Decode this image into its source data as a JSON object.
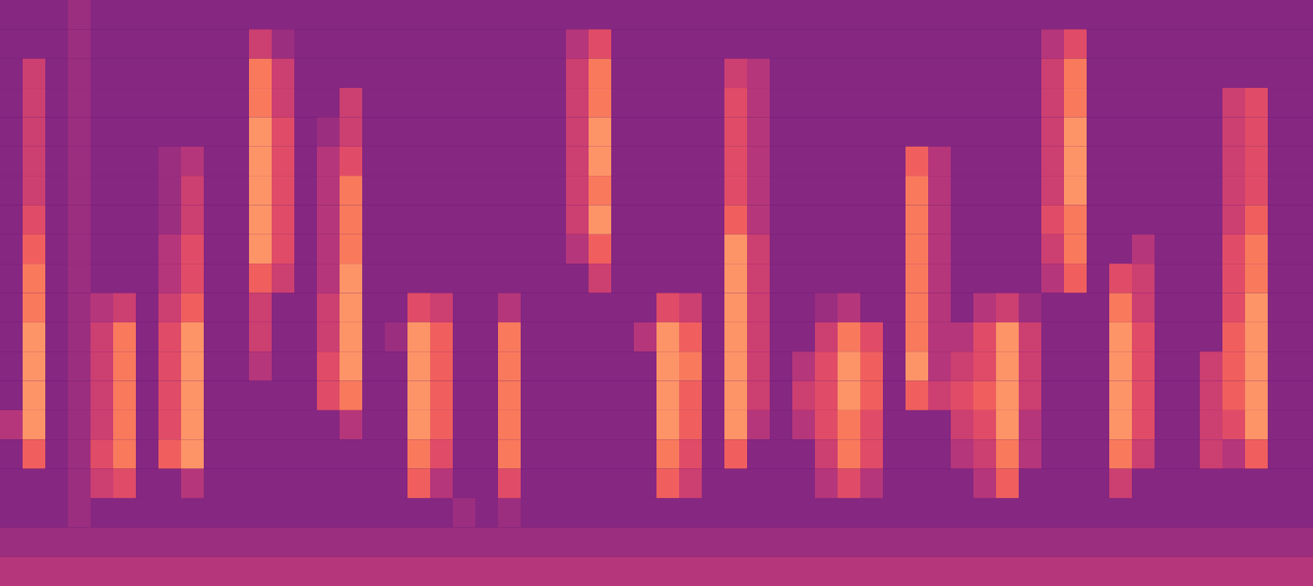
{
  "chart_data": {
    "type": "heatmap",
    "tick_labels": false,
    "xlim": [
      0,
      58
    ],
    "ylim": [
      0,
      20
    ],
    "color_range": [
      0,
      9
    ],
    "cells": [
      [
        1,
        1,
        1,
        2,
        1,
        1,
        1,
        1,
        1,
        1,
        1,
        1,
        1,
        1,
        1,
        1,
        1,
        1,
        1,
        1,
        1,
        1,
        1,
        1,
        1,
        1,
        1,
        1,
        1,
        1,
        1,
        1,
        1,
        1,
        1,
        1,
        1,
        1,
        1,
        1,
        1,
        1,
        1,
        1,
        1,
        1,
        1,
        1,
        1,
        1,
        1,
        1,
        1,
        1,
        1,
        1,
        1,
        1
      ],
      [
        1,
        1,
        1,
        2,
        1,
        1,
        1,
        1,
        1,
        1,
        1,
        4,
        2,
        1,
        1,
        1,
        1,
        1,
        1,
        1,
        1,
        1,
        1,
        1,
        1,
        3,
        5,
        1,
        1,
        1,
        1,
        1,
        1,
        1,
        1,
        1,
        1,
        1,
        1,
        1,
        1,
        1,
        1,
        1,
        1,
        1,
        3,
        5,
        1,
        1,
        1,
        1,
        1,
        1,
        1,
        1,
        1,
        1
      ],
      [
        1,
        4,
        1,
        2,
        1,
        1,
        1,
        1,
        1,
        1,
        1,
        7,
        4,
        1,
        1,
        1,
        1,
        1,
        1,
        1,
        1,
        1,
        1,
        1,
        1,
        4,
        7,
        1,
        1,
        1,
        1,
        1,
        4,
        3,
        1,
        1,
        1,
        1,
        1,
        1,
        1,
        1,
        1,
        1,
        1,
        1,
        4,
        7,
        1,
        1,
        1,
        1,
        1,
        1,
        1,
        1,
        1,
        1
      ],
      [
        1,
        4,
        1,
        2,
        1,
        1,
        1,
        1,
        1,
        1,
        1,
        7,
        4,
        1,
        1,
        4,
        1,
        1,
        1,
        1,
        1,
        1,
        1,
        1,
        1,
        4,
        7,
        1,
        1,
        1,
        1,
        1,
        5,
        3,
        1,
        1,
        1,
        1,
        1,
        1,
        1,
        1,
        1,
        1,
        1,
        1,
        4,
        7,
        1,
        1,
        1,
        1,
        1,
        1,
        4,
        5,
        1,
        1
      ],
      [
        1,
        4,
        1,
        2,
        1,
        1,
        1,
        1,
        1,
        1,
        1,
        8,
        5,
        1,
        2,
        4,
        1,
        1,
        1,
        1,
        1,
        1,
        1,
        1,
        1,
        4,
        8,
        1,
        1,
        1,
        1,
        1,
        5,
        3,
        1,
        1,
        1,
        1,
        1,
        1,
        1,
        1,
        1,
        1,
        1,
        1,
        4,
        8,
        1,
        1,
        1,
        1,
        1,
        1,
        4,
        5,
        1,
        1
      ],
      [
        1,
        4,
        1,
        2,
        1,
        1,
        1,
        2,
        3,
        1,
        1,
        8,
        5,
        1,
        3,
        5,
        1,
        1,
        1,
        1,
        1,
        1,
        1,
        1,
        1,
        4,
        8,
        1,
        1,
        1,
        1,
        1,
        5,
        3,
        1,
        1,
        1,
        1,
        1,
        1,
        6,
        3,
        1,
        1,
        1,
        1,
        4,
        8,
        1,
        1,
        1,
        1,
        1,
        1,
        4,
        5,
        1,
        1
      ],
      [
        1,
        4,
        1,
        2,
        1,
        1,
        1,
        2,
        4,
        1,
        1,
        8,
        5,
        1,
        3,
        7,
        1,
        1,
        1,
        1,
        1,
        1,
        1,
        1,
        1,
        4,
        7,
        1,
        1,
        1,
        1,
        1,
        5,
        3,
        1,
        1,
        1,
        1,
        1,
        1,
        7,
        3,
        1,
        1,
        1,
        1,
        4,
        8,
        1,
        1,
        1,
        1,
        1,
        1,
        4,
        5,
        1,
        1
      ],
      [
        1,
        5,
        1,
        2,
        1,
        1,
        1,
        2,
        4,
        1,
        1,
        8,
        5,
        1,
        3,
        7,
        1,
        1,
        1,
        1,
        1,
        1,
        1,
        1,
        1,
        4,
        8,
        1,
        1,
        1,
        1,
        1,
        6,
        3,
        1,
        1,
        1,
        1,
        1,
        1,
        7,
        3,
        1,
        1,
        1,
        1,
        5,
        7,
        1,
        1,
        1,
        1,
        1,
        1,
        4,
        6,
        1,
        1
      ],
      [
        1,
        6,
        1,
        2,
        1,
        1,
        1,
        3,
        5,
        1,
        1,
        8,
        5,
        1,
        3,
        7,
        1,
        1,
        1,
        1,
        1,
        1,
        1,
        1,
        1,
        3,
        6,
        1,
        1,
        1,
        1,
        1,
        8,
        4,
        1,
        1,
        1,
        1,
        1,
        1,
        7,
        3,
        1,
        1,
        1,
        1,
        4,
        7,
        1,
        1,
        3,
        1,
        1,
        1,
        5,
        7,
        1,
        1
      ],
      [
        1,
        7,
        1,
        2,
        1,
        1,
        1,
        3,
        5,
        1,
        1,
        6,
        4,
        1,
        3,
        8,
        1,
        1,
        1,
        1,
        1,
        1,
        1,
        1,
        1,
        1,
        4,
        1,
        1,
        1,
        1,
        1,
        8,
        4,
        1,
        1,
        1,
        1,
        1,
        1,
        7,
        3,
        1,
        1,
        1,
        1,
        3,
        6,
        1,
        5,
        4,
        1,
        1,
        1,
        5,
        7,
        1,
        1
      ],
      [
        1,
        7,
        1,
        2,
        3,
        4,
        1,
        4,
        6,
        1,
        1,
        4,
        1,
        1,
        4,
        8,
        1,
        1,
        5,
        4,
        1,
        1,
        3,
        1,
        1,
        1,
        1,
        1,
        1,
        5,
        4,
        1,
        8,
        4,
        1,
        1,
        2,
        3,
        1,
        1,
        7,
        3,
        1,
        3,
        4,
        2,
        1,
        1,
        1,
        7,
        4,
        1,
        1,
        1,
        5,
        8,
        1,
        1
      ],
      [
        1,
        8,
        1,
        2,
        4,
        7,
        1,
        5,
        8,
        1,
        1,
        4,
        1,
        1,
        4,
        8,
        1,
        2,
        8,
        6,
        1,
        1,
        7,
        1,
        1,
        1,
        1,
        1,
        3,
        8,
        6,
        1,
        8,
        4,
        1,
        1,
        4,
        7,
        5,
        1,
        7,
        3,
        3,
        5,
        8,
        4,
        1,
        1,
        1,
        8,
        5,
        1,
        1,
        1,
        6,
        8,
        1,
        1
      ],
      [
        1,
        8,
        1,
        2,
        4,
        7,
        1,
        5,
        8,
        1,
        1,
        3,
        1,
        1,
        5,
        8,
        1,
        1,
        8,
        6,
        1,
        1,
        7,
        1,
        1,
        1,
        1,
        1,
        1,
        8,
        7,
        1,
        8,
        4,
        1,
        3,
        5,
        8,
        6,
        1,
        8,
        3,
        4,
        5,
        8,
        4,
        1,
        1,
        1,
        8,
        5,
        1,
        1,
        4,
        6,
        8,
        1,
        1
      ],
      [
        1,
        8,
        1,
        2,
        4,
        7,
        1,
        5,
        8,
        1,
        1,
        1,
        1,
        1,
        5,
        7,
        1,
        1,
        8,
        6,
        1,
        1,
        7,
        1,
        1,
        1,
        1,
        1,
        1,
        8,
        6,
        1,
        8,
        4,
        1,
        4,
        5,
        8,
        6,
        1,
        6,
        4,
        5,
        6,
        8,
        4,
        1,
        1,
        1,
        8,
        5,
        1,
        1,
        4,
        6,
        8,
        1,
        1
      ],
      [
        3,
        8,
        1,
        2,
        4,
        7,
        1,
        5,
        8,
        1,
        1,
        1,
        1,
        1,
        1,
        3,
        1,
        1,
        8,
        6,
        1,
        1,
        7,
        1,
        1,
        1,
        1,
        1,
        1,
        8,
        6,
        1,
        8,
        3,
        1,
        3,
        5,
        7,
        5,
        1,
        1,
        1,
        4,
        5,
        8,
        3,
        1,
        1,
        1,
        8,
        5,
        1,
        1,
        4,
        5,
        8,
        1,
        1
      ],
      [
        1,
        6,
        1,
        2,
        5,
        7,
        1,
        6,
        8,
        1,
        1,
        1,
        1,
        1,
        1,
        1,
        1,
        1,
        7,
        5,
        1,
        1,
        7,
        1,
        1,
        1,
        1,
        1,
        1,
        7,
        5,
        1,
        6,
        1,
        1,
        1,
        4,
        7,
        5,
        1,
        1,
        1,
        3,
        4,
        7,
        3,
        1,
        1,
        1,
        7,
        4,
        1,
        1,
        4,
        3,
        6,
        1,
        1
      ],
      [
        1,
        1,
        1,
        2,
        4,
        5,
        1,
        1,
        3,
        1,
        1,
        1,
        1,
        1,
        1,
        1,
        1,
        1,
        6,
        3,
        1,
        1,
        5,
        1,
        1,
        1,
        1,
        1,
        1,
        6,
        4,
        1,
        1,
        1,
        1,
        1,
        3,
        5,
        3,
        1,
        1,
        1,
        1,
        3,
        6,
        1,
        1,
        1,
        1,
        4,
        1,
        1,
        1,
        1,
        1,
        1,
        1,
        1
      ],
      [
        1,
        1,
        1,
        2,
        1,
        1,
        1,
        1,
        1,
        1,
        1,
        1,
        1,
        1,
        1,
        1,
        1,
        1,
        1,
        1,
        2,
        1,
        2,
        1,
        1,
        1,
        1,
        1,
        1,
        1,
        1,
        1,
        1,
        1,
        1,
        1,
        1,
        1,
        1,
        1,
        1,
        1,
        1,
        1,
        1,
        1,
        1,
        1,
        1,
        1,
        1,
        1,
        1,
        1,
        1,
        1,
        1,
        1
      ],
      [
        2,
        2,
        2,
        2,
        2,
        2,
        2,
        2,
        2,
        2,
        2,
        2,
        2,
        2,
        2,
        2,
        2,
        2,
        2,
        2,
        2,
        2,
        2,
        2,
        2,
        2,
        2,
        2,
        2,
        2,
        2,
        2,
        2,
        2,
        2,
        2,
        2,
        2,
        2,
        2,
        2,
        2,
        2,
        2,
        2,
        2,
        2,
        2,
        2,
        2,
        2,
        2,
        2,
        2,
        2,
        2,
        2,
        2
      ],
      [
        3,
        3,
        3,
        3,
        3,
        3,
        3,
        3,
        3,
        3,
        3,
        3,
        3,
        3,
        3,
        3,
        3,
        3,
        3,
        3,
        3,
        3,
        3,
        3,
        3,
        3,
        3,
        3,
        3,
        3,
        3,
        3,
        3,
        3,
        3,
        3,
        3,
        3,
        3,
        3,
        3,
        3,
        3,
        3,
        3,
        3,
        3,
        3,
        3,
        3,
        3,
        3,
        3,
        3,
        3,
        3,
        3,
        3
      ]
    ]
  }
}
